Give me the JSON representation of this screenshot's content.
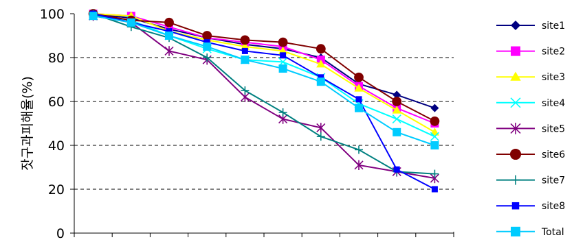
{
  "chart_data": {
    "type": "line",
    "title": "",
    "xlabel": "",
    "ylabel": "잣구과피해율(%)",
    "ylim": [
      0,
      100
    ],
    "yticks": [
      0,
      20,
      40,
      60,
      80,
      100
    ],
    "x_count": 10,
    "grid": "y-dashed",
    "legend_position": "right",
    "series": [
      {
        "name": "site1",
        "color": "#000080",
        "marker": "diamond",
        "values": [
          100,
          98,
          93,
          89,
          86,
          84,
          80,
          68,
          63,
          57
        ]
      },
      {
        "name": "site2",
        "color": "#ff00ff",
        "marker": "square",
        "values": [
          100,
          99,
          94,
          89,
          87,
          85,
          79,
          67,
          57,
          50
        ]
      },
      {
        "name": "site3",
        "color": "#ffff00",
        "marker": "triangle",
        "values": [
          100,
          99,
          92,
          88,
          85,
          83,
          77,
          66,
          56,
          46
        ]
      },
      {
        "name": "site4",
        "color": "#00ffff",
        "marker": "x",
        "values": [
          99,
          97,
          90,
          84,
          79,
          78,
          71,
          59,
          52,
          44
        ]
      },
      {
        "name": "site5",
        "color": "#800080",
        "marker": "star",
        "values": [
          99,
          96,
          83,
          79,
          62,
          52,
          48,
          31,
          28,
          25
        ]
      },
      {
        "name": "site6",
        "color": "#800000",
        "marker": "circle",
        "values": [
          100,
          97,
          96,
          90,
          88,
          87,
          84,
          71,
          60,
          51
        ]
      },
      {
        "name": "site7",
        "color": "#008080",
        "marker": "plus",
        "values": [
          100,
          94,
          89,
          80,
          65,
          55,
          44,
          38,
          28,
          27
        ]
      },
      {
        "name": "site8",
        "color": "#0000ff",
        "marker": "smallsquare",
        "values": [
          100,
          96,
          92,
          87,
          83,
          81,
          71,
          61,
          29,
          20
        ]
      },
      {
        "name": "Total",
        "color": "#00ccff",
        "marker": "square",
        "values": [
          99,
          96,
          90,
          85,
          79,
          75,
          69,
          57,
          46,
          40
        ]
      }
    ]
  }
}
